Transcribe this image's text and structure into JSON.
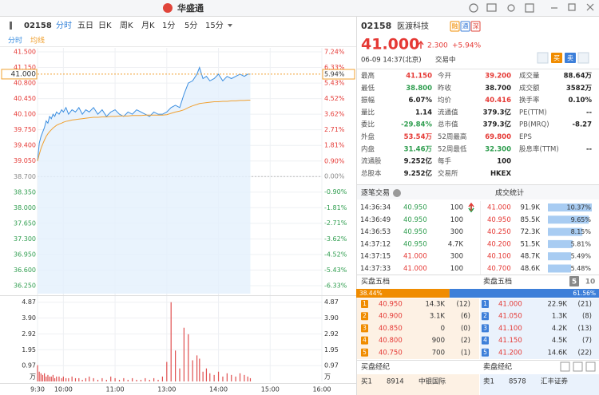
{
  "window": {
    "title": "华盛通"
  },
  "toolbar": {
    "code": "02158",
    "tabs": [
      "分时",
      "五日",
      "日K",
      "周K",
      "月K",
      "1分",
      "5分",
      "15分"
    ]
  },
  "chart_data": {
    "type": "line",
    "grid": true,
    "x": [
      0,
      2,
      4,
      6,
      8,
      10,
      12,
      14,
      16,
      18,
      20,
      22,
      25,
      28,
      30,
      33,
      36,
      40,
      44,
      48,
      52,
      56,
      60,
      65,
      70,
      75,
      80,
      85,
      90,
      95,
      100,
      105,
      110,
      115,
      120,
      125,
      130,
      135,
      140,
      145,
      150,
      155,
      160,
      165,
      170,
      175,
      180,
      185,
      188,
      192,
      196,
      200,
      205,
      210,
      215,
      220,
      225,
      230,
      235,
      240,
      244,
      247
    ],
    "series": [
      {
        "name": "分时",
        "color": "#3b8ee0",
        "values": [
          39.05,
          39.45,
          39.6,
          39.7,
          39.8,
          39.95,
          39.9,
          40.05,
          40.0,
          40.1,
          40.05,
          40.15,
          40.1,
          40.2,
          40.15,
          40.25,
          40.1,
          40.2,
          40.15,
          40.25,
          40.1,
          40.2,
          40.15,
          40.25,
          40.1,
          40.2,
          40.05,
          40.15,
          40.2,
          40.1,
          40.05,
          40.15,
          40.1,
          40.2,
          40.15,
          40.1,
          40.05,
          40.15,
          40.1,
          40.1,
          40.15,
          40.25,
          40.3,
          40.25,
          40.55,
          40.8,
          40.85,
          41.0,
          41.15,
          40.9,
          40.95,
          40.85,
          40.9,
          41.0,
          40.85,
          40.95,
          40.9,
          40.95,
          41.0,
          40.95,
          41.0,
          41.0
        ]
      },
      {
        "name": "均线",
        "color": "#f0a030",
        "values": [
          39.05,
          39.2,
          39.33,
          39.43,
          39.52,
          39.6,
          39.66,
          39.71,
          39.75,
          39.79,
          39.82,
          39.85,
          39.88,
          39.9,
          39.92,
          39.94,
          39.95,
          39.97,
          39.98,
          39.99,
          40.0,
          40.01,
          40.02,
          40.03,
          40.03,
          40.04,
          40.04,
          40.05,
          40.05,
          40.06,
          40.06,
          40.06,
          40.07,
          40.07,
          40.07,
          40.08,
          40.08,
          40.08,
          40.08,
          40.08,
          40.09,
          40.12,
          40.15,
          40.17,
          40.2,
          40.25,
          40.29,
          40.32,
          40.34,
          40.35,
          40.36,
          40.37,
          40.38,
          40.38,
          40.39,
          40.39,
          40.4,
          40.4,
          40.41,
          40.41,
          40.415,
          40.416
        ]
      }
    ],
    "xlim": [
      0,
      330
    ],
    "xticks": [
      {
        "value": 0,
        "label": "9:30"
      },
      {
        "value": 30,
        "label": "10:00"
      },
      {
        "value": 90,
        "label": "11:00"
      },
      {
        "value": 150,
        "label": "13:00"
      },
      {
        "value": 210,
        "label": "14:00"
      },
      {
        "value": 270,
        "label": "15:00"
      },
      {
        "value": 330,
        "label": "16:00"
      }
    ],
    "ylim": [
      36.07,
      41.59
    ],
    "yticks": [
      {
        "value": 41.5,
        "label": "41.500"
      },
      {
        "value": 41.15,
        "label": "41.150"
      },
      {
        "value": 40.8,
        "label": "40.800"
      },
      {
        "value": 40.45,
        "label": "40.450"
      },
      {
        "value": 40.1,
        "label": "40.100"
      },
      {
        "value": 39.75,
        "label": "39.750"
      },
      {
        "value": 39.4,
        "label": "39.400"
      },
      {
        "value": 39.05,
        "label": "39.050"
      },
      {
        "value": 38.7,
        "label": "38.700"
      },
      {
        "value": 38.35,
        "label": "38.350"
      },
      {
        "value": 38,
        "label": "38.000"
      },
      {
        "value": 37.65,
        "label": "37.650"
      },
      {
        "value": 37.3,
        "label": "37.300"
      },
      {
        "value": 36.95,
        "label": "36.950"
      },
      {
        "value": 36.6,
        "label": "36.600"
      },
      {
        "value": 36.25,
        "label": "36.250"
      }
    ],
    "y2lim": [
      -6.8,
      7.47
    ],
    "y2ticks": [
      {
        "value": 7.24,
        "label": "7.24%"
      },
      {
        "value": 6.33,
        "label": "6.33%"
      },
      {
        "value": 5.43,
        "label": "5.43%"
      },
      {
        "value": 4.52,
        "label": "4.52%"
      },
      {
        "value": 3.62,
        "label": "3.62%"
      },
      {
        "value": 2.71,
        "label": "2.71%"
      },
      {
        "value": 1.81,
        "label": "1.81%"
      },
      {
        "value": 0.9,
        "label": "0.90%"
      },
      {
        "value": 0,
        "label": "0.00%"
      },
      {
        "value": -0.9,
        "label": "-0.90%"
      },
      {
        "value": -1.81,
        "label": "-1.81%"
      },
      {
        "value": -2.71,
        "label": "-2.71%"
      },
      {
        "value": -3.62,
        "label": "-3.62%"
      },
      {
        "value": -4.52,
        "label": "-4.52%"
      },
      {
        "value": -5.43,
        "label": "-5.43%"
      },
      {
        "value": -6.33,
        "label": "-6.33%"
      }
    ],
    "prev_close": 38.7,
    "up_color": "#e53935",
    "down_color": "#2e9d4e",
    "last": {
      "value": 41.0,
      "label": "41.000",
      "pct": {
        "value": 5.94,
        "label": "5.94%"
      }
    },
    "volume": {
      "color": "#e05050",
      "unit": "万",
      "ylim": [
        0,
        5.2
      ],
      "yticks": [
        4.87,
        {
          "value": 3.9,
          "label": "3.90"
        },
        2.92,
        1.95,
        0.97
      ],
      "values": [
        1.0,
        0.6,
        0.5,
        0.4,
        0.5,
        0.3,
        0.4,
        0.3,
        0.3,
        0.4,
        0.2,
        0.3,
        0.3,
        0.2,
        0.3,
        0.2,
        0.2,
        0.3,
        0.2,
        0.2,
        0.1,
        0.2,
        0.3,
        0.2,
        0.1,
        0.2,
        0.1,
        0.3,
        0.2,
        0.1,
        0.2,
        0.1,
        0.2,
        0.1,
        0.1,
        0.2,
        0.1,
        0.2,
        0.1,
        0.3,
        1.2,
        4.87,
        1.9,
        0.8,
        3.3,
        2.9,
        1.3,
        1.6,
        1.4,
        0.6,
        0.8,
        0.5,
        0.4,
        0.6,
        0.3,
        0.5,
        0.4,
        0.3,
        0.5,
        0.4,
        0.3,
        0.2
      ]
    }
  },
  "quote": {
    "code": "02158",
    "name": "医渡科技",
    "badges": [
      {
        "text": "融",
        "color": "#f08c00"
      },
      {
        "text": "通",
        "color": "#3d7fd9"
      },
      {
        "text": "深",
        "color": "#e0443a"
      }
    ],
    "price": "41.000",
    "change": "2.300",
    "change_pct": "+5.94%",
    "time": "06-09 14:37(北京)",
    "status": "交易中",
    "actions": [
      "买",
      "卖"
    ],
    "stats": [
      [
        {
          "label": "最高",
          "value": "41.150",
          "color": "#e53935"
        },
        {
          "label": "今开",
          "value": "39.200",
          "color": "#e53935"
        },
        {
          "label": "成交量",
          "value": "88.64万"
        }
      ],
      [
        {
          "label": "最低",
          "value": "38.800",
          "color": "#2e9d4e"
        },
        {
          "label": "昨收",
          "value": "38.700"
        },
        {
          "label": "成交额",
          "value": "3582万"
        }
      ],
      [
        {
          "label": "振幅",
          "value": "6.07%"
        },
        {
          "label": "均价",
          "value": "40.416",
          "color": "#e53935"
        },
        {
          "label": "换手率",
          "value": "0.10%"
        }
      ],
      [
        {
          "label": "量比",
          "value": "1.14"
        },
        {
          "label": "流通值",
          "value": "379.3亿"
        },
        {
          "label": "PE(TTM)",
          "value": "--"
        }
      ],
      [
        {
          "label": "委比",
          "value": "-29.84%",
          "color": "#2e9d4e"
        },
        {
          "label": "总市值",
          "value": "379.3亿"
        },
        {
          "label": "PB(MRQ)",
          "value": "-8.27"
        }
      ],
      [
        {
          "label": "外盘",
          "value": "53.54万",
          "color": "#e53935"
        },
        {
          "label": "52周最高",
          "value": "69.800",
          "color": "#e53935"
        },
        {
          "label": "EPS"
        }
      ],
      [
        {
          "label": "内盘",
          "value": "31.46万",
          "color": "#2e9d4e"
        },
        {
          "label": "52周最低",
          "value": "32.300",
          "color": "#2e9d4e"
        },
        {
          "label": "股息率(TTM)",
          "value": "--"
        }
      ],
      [
        {
          "label": "流通股",
          "value": "9.252亿"
        },
        {
          "label": "每手",
          "value": "100"
        }
      ],
      [
        {
          "label": "总股本",
          "value": "9.252亿"
        },
        {
          "label": "交易所",
          "value": "HKEX"
        }
      ]
    ]
  },
  "trades": {
    "title": "逐笔交易",
    "rows": [
      {
        "time": "14:36:34",
        "price": "40.950",
        "volume": "100",
        "up": false
      },
      {
        "time": "14:36:49",
        "price": "40.950",
        "volume": "100",
        "up": false
      },
      {
        "time": "14:36:53",
        "price": "40.950",
        "volume": "300",
        "up": false
      },
      {
        "time": "14:37:12",
        "price": "40.950",
        "volume": "4.7K",
        "up": false
      },
      {
        "time": "14:37:15",
        "price": "41.000",
        "volume": "300",
        "up": true
      },
      {
        "time": "14:37:33",
        "price": "41.000",
        "volume": "100",
        "up": true
      }
    ]
  },
  "trade_stats": {
    "title": "成交统计",
    "rows": [
      {
        "price": "41.000",
        "volume": "91.9K",
        "pct": 10.37,
        "pct_label": "10.37%"
      },
      {
        "price": "40.950",
        "volume": "85.5K",
        "pct": 9.65,
        "pct_label": "9.65%"
      },
      {
        "price": "40.250",
        "volume": "72.3K",
        "pct": 8.15,
        "pct_label": "8.15%"
      },
      {
        "price": "40.200",
        "volume": "51.5K",
        "pct": 5.81,
        "pct_label": "5.81%"
      },
      {
        "price": "40.100",
        "volume": "48.7K",
        "pct": 5.49,
        "pct_label": "5.49%"
      },
      {
        "price": "40.700",
        "volume": "48.6K",
        "pct": 5.48,
        "pct_label": "5.48%"
      }
    ]
  },
  "order_book": {
    "bid_title": "买盘五档",
    "ask_title": "卖盘五档",
    "depth_options": [
      5,
      10
    ],
    "bid_ratio": 38.44,
    "bid_ratio_label": "38.44%",
    "ask_ratio": 61.56,
    "ask_ratio_label": "61.56%",
    "bids": [
      {
        "level": 1,
        "price": "40.950",
        "volume": "14.3K",
        "orders": "(12)"
      },
      {
        "level": 2,
        "price": "40.900",
        "volume": "3.1K",
        "orders": "(6)"
      },
      {
        "level": 3,
        "price": "40.850",
        "volume": "0",
        "orders": "(0)"
      },
      {
        "level": 4,
        "price": "40.800",
        "volume": "900",
        "orders": "(2)"
      },
      {
        "level": 5,
        "price": "40.750",
        "volume": "700",
        "orders": "(1)"
      }
    ],
    "asks": [
      {
        "level": 1,
        "price": "41.000",
        "volume": "22.9K",
        "orders": "(21)"
      },
      {
        "level": 2,
        "price": "41.050",
        "volume": "1.3K",
        "orders": "(8)"
      },
      {
        "level": 3,
        "price": "41.100",
        "volume": "4.2K",
        "orders": "(13)"
      },
      {
        "level": 4,
        "price": "41.150",
        "volume": "4.5K",
        "orders": "(7)"
      },
      {
        "level": 5,
        "price": "41.200",
        "volume": "14.6K",
        "orders": "(22)"
      }
    ]
  },
  "brokers": {
    "bid_title": "买盘经纪",
    "ask_title": "卖盘经纪",
    "bid_rows": [
      {
        "level": "买1",
        "id": "8914",
        "name": "中银国际"
      }
    ],
    "ask_rows": [
      {
        "level": "卖1",
        "id": "8578",
        "name": "汇丰证券"
      }
    ]
  }
}
